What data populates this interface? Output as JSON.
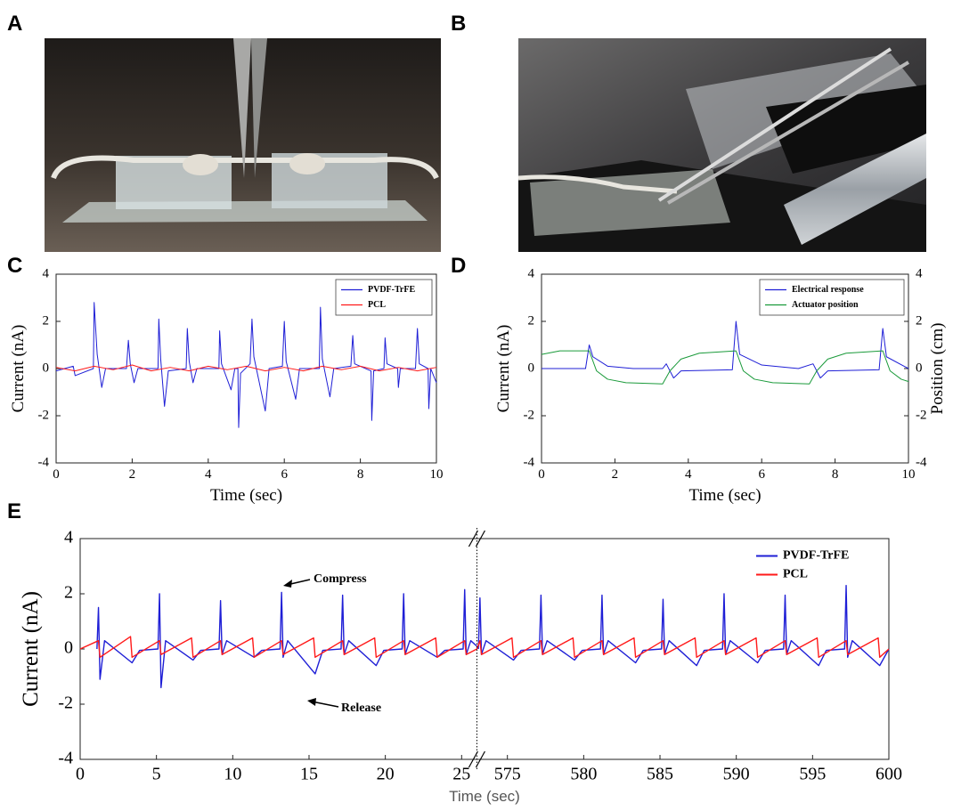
{
  "photo_labels": [
    "A",
    "B"
  ],
  "chart_data": [
    {
      "type": "line",
      "panel": "C",
      "xlabel": "Time (sec)",
      "ylabel": "Current (nA)",
      "xlim": [
        0,
        10
      ],
      "xticks": [
        0,
        2,
        4,
        6,
        8,
        10
      ],
      "ylim": [
        -4,
        4
      ],
      "yticks": [
        -4,
        -2,
        0,
        2,
        4
      ],
      "legend": "upper right",
      "legend_box": true,
      "series": [
        {
          "name": "PVDF-TrFE",
          "color": "#1f1fd6",
          "x": [
            0,
            0.45,
            0.5,
            0.98,
            1.0,
            1.08,
            1.2,
            1.3,
            1.85,
            1.9,
            1.95,
            2.05,
            2.15,
            2.68,
            2.7,
            2.75,
            2.85,
            2.95,
            3.42,
            3.45,
            3.5,
            3.6,
            3.7,
            4.28,
            4.3,
            4.35,
            4.6,
            4.7,
            4.78,
            4.8,
            4.85,
            5.1,
            5.15,
            5.2,
            5.5,
            5.6,
            5.95,
            6.0,
            6.05,
            6.3,
            6.4,
            6.92,
            6.95,
            7.0,
            7.2,
            7.3,
            7.75,
            7.8,
            7.85,
            8.28,
            8.3,
            8.35,
            8.62,
            8.65,
            8.7,
            8.98,
            9.0,
            9.05,
            9.45,
            9.5,
            9.55,
            9.78,
            9.8,
            9.85,
            10
          ],
          "values": [
            -0.1,
            0.1,
            -0.3,
            0,
            2.8,
            0.6,
            -0.8,
            0,
            0,
            1.2,
            0.2,
            -0.6,
            0,
            0,
            2.1,
            0.4,
            -1.6,
            -0.1,
            0,
            1.7,
            0.3,
            -0.6,
            0,
            0,
            1.6,
            0.2,
            -0.9,
            0,
            0,
            -2.5,
            -0.2,
            0.2,
            2.1,
            0.5,
            -1.8,
            0,
            0.1,
            2.0,
            0.3,
            -1.3,
            0,
            0,
            2.6,
            0.4,
            -1.2,
            0,
            0.1,
            1.4,
            0.2,
            -0.1,
            -2.2,
            -0.1,
            0,
            1.3,
            0.2,
            0,
            -0.8,
            0,
            0,
            1.7,
            0.2,
            0,
            -1.7,
            0,
            -0.6
          ]
        },
        {
          "name": "PCL",
          "color": "#ff1a1a",
          "x": [
            0,
            0.5,
            1,
            1.5,
            2,
            2.5,
            3,
            3.5,
            4,
            4.5,
            5,
            5.5,
            6,
            6.5,
            7,
            7.5,
            8,
            8.5,
            9,
            9.5,
            10
          ],
          "values": [
            0.05,
            -0.1,
            0.1,
            -0.05,
            0.15,
            -0.1,
            0.05,
            -0.1,
            0.1,
            -0.05,
            0.1,
            -0.1,
            0.05,
            -0.1,
            0.1,
            -0.05,
            0.1,
            -0.1,
            0.05,
            -0.1,
            0.05
          ]
        }
      ]
    },
    {
      "type": "line",
      "panel": "D",
      "xlabel": "Time (sec)",
      "ylabel": "Current (nA)",
      "y2label": "Position (cm)",
      "xlim": [
        0,
        10
      ],
      "xticks": [
        0,
        2,
        4,
        6,
        8,
        10
      ],
      "ylim": [
        -4,
        4
      ],
      "yticks": [
        -4,
        -2,
        0,
        2,
        4
      ],
      "y2lim": [
        -4,
        4
      ],
      "y2ticks": [
        -4,
        -2,
        0,
        2,
        4
      ],
      "legend": "upper right",
      "legend_box": true,
      "series": [
        {
          "name": "Electrical response",
          "color": "#1f1fd6",
          "x": [
            0,
            1.2,
            1.3,
            1.4,
            1.8,
            2.5,
            3.3,
            3.4,
            3.6,
            3.8,
            5.2,
            5.3,
            5.4,
            6,
            7,
            7.4,
            7.6,
            7.8,
            9.2,
            9.3,
            9.4,
            10
          ],
          "values": [
            0,
            0,
            1.0,
            0.5,
            0.1,
            0,
            0,
            0.2,
            -0.4,
            -0.1,
            -0.05,
            2.0,
            0.6,
            0.15,
            0,
            0.2,
            -0.4,
            -0.1,
            -0.05,
            1.7,
            0.5,
            0
          ]
        },
        {
          "name": "Actuator position",
          "color": "#1a9a3a",
          "axis": "y2",
          "x": [
            0,
            0.5,
            1.3,
            1.5,
            1.8,
            2.3,
            3.3,
            3.5,
            3.8,
            4.3,
            5.3,
            5.5,
            5.8,
            6.3,
            7.3,
            7.5,
            7.8,
            8.3,
            9.3,
            9.5,
            9.8,
            10
          ],
          "values": [
            0.6,
            0.75,
            0.75,
            -0.1,
            -0.45,
            -0.6,
            -0.65,
            -0.1,
            0.4,
            0.65,
            0.75,
            -0.1,
            -0.45,
            -0.6,
            -0.65,
            -0.1,
            0.4,
            0.65,
            0.75,
            -0.1,
            -0.45,
            -0.55
          ]
        }
      ]
    },
    {
      "type": "line",
      "panel": "E",
      "xlabel": "Time (sec)",
      "ylabel": "Current (nA)",
      "x_segments": [
        {
          "xlim": [
            0,
            26
          ],
          "xticks": [
            0,
            5,
            10,
            15,
            20,
            25
          ]
        },
        {
          "xlim": [
            573,
            600
          ],
          "xticks": [
            575,
            580,
            585,
            590,
            595,
            600
          ]
        }
      ],
      "ylim": [
        -4,
        4
      ],
      "yticks": [
        -4,
        -2,
        0,
        2,
        4
      ],
      "legend": "upper right",
      "legend_box": false,
      "annotations": [
        {
          "text": "Compress"
        },
        {
          "text": "Release"
        }
      ],
      "series": [
        {
          "name": "PVDF-TrFE",
          "color": "#1f1fd6",
          "x": [
            1.1,
            1.2,
            1.3,
            1.6,
            3.4,
            3.9,
            5.1,
            5.2,
            5.3,
            5.6,
            7.4,
            7.9,
            9.1,
            9.2,
            9.3,
            9.6,
            11.4,
            11.9,
            13.1,
            13.2,
            13.3,
            13.6,
            15.4,
            15.9,
            17.1,
            17.2,
            17.3,
            17.6,
            19.4,
            19.9,
            21.1,
            21.2,
            21.3,
            21.6,
            23.4,
            23.9,
            25.1,
            25.2,
            25.3,
            25.6,
            26,
            27,
            573.1,
            573.2,
            573.3,
            573.6,
            575.4,
            575.9,
            577.1,
            577.2,
            577.3,
            577.6,
            579.4,
            579.9,
            581.1,
            581.2,
            581.3,
            581.6,
            583.4,
            583.9,
            585.1,
            585.2,
            585.3,
            585.6,
            587.4,
            587.9,
            589.1,
            589.2,
            589.3,
            589.6,
            591.4,
            591.9,
            593.1,
            593.2,
            593.3,
            593.6,
            595.4,
            595.9,
            597.1,
            597.2,
            597.3,
            597.6,
            599.4,
            600
          ],
          "values": [
            0,
            1.5,
            -1.1,
            0.3,
            -0.5,
            -0.05,
            0,
            2.0,
            -1.4,
            0.3,
            -0.4,
            -0.05,
            0,
            1.75,
            -0.2,
            0.3,
            -0.3,
            -0.05,
            0,
            2.05,
            -0.3,
            0.3,
            -0.9,
            -0.05,
            0,
            1.95,
            -0.2,
            0.3,
            -0.6,
            -0.05,
            0,
            2.0,
            -0.2,
            0.3,
            -0.3,
            -0.05,
            0,
            2.15,
            -0.2,
            0.3,
            0.1,
            null,
            0,
            1.85,
            -0.2,
            0.3,
            -0.4,
            -0.05,
            0,
            1.95,
            -0.2,
            0.3,
            -0.4,
            -0.05,
            0,
            1.95,
            -0.2,
            0.3,
            -0.5,
            -0.05,
            0,
            1.8,
            -0.2,
            0.3,
            -0.6,
            -0.05,
            0,
            2.0,
            -0.2,
            0.3,
            -0.5,
            -0.05,
            0,
            1.95,
            -0.2,
            0.3,
            -0.6,
            -0.05,
            0,
            2.3,
            -0.3,
            0.3,
            -0.6,
            0
          ]
        },
        {
          "name": "PCL",
          "color": "#ff1a1a",
          "x": [
            0,
            1.2,
            1.3,
            3.3,
            3.4,
            5.2,
            5.3,
            7.3,
            7.4,
            9.2,
            9.3,
            11.3,
            11.4,
            13.2,
            13.3,
            15.3,
            15.4,
            17.2,
            17.3,
            19.3,
            19.4,
            21.2,
            21.3,
            23.3,
            23.4,
            25.2,
            25.3,
            26,
            27,
            573,
            573.2,
            573.3,
            575.3,
            575.4,
            577.2,
            577.3,
            579.3,
            579.4,
            581.2,
            581.3,
            583.3,
            583.4,
            585.2,
            585.3,
            587.3,
            587.4,
            589.2,
            589.3,
            591.3,
            591.4,
            593.2,
            593.3,
            595.3,
            595.4,
            597.2,
            597.3,
            599.3,
            599.4,
            600
          ],
          "values": [
            0,
            0.3,
            -0.3,
            0.45,
            -0.3,
            0.3,
            -0.2,
            0.4,
            -0.3,
            0.3,
            -0.2,
            0.4,
            -0.3,
            0.3,
            -0.2,
            0.4,
            -0.3,
            0.3,
            -0.2,
            0.4,
            -0.3,
            0.3,
            -0.2,
            0.4,
            -0.3,
            0.3,
            -0.2,
            0,
            null,
            0,
            0.3,
            -0.2,
            0.4,
            -0.3,
            0.3,
            -0.2,
            0.4,
            -0.3,
            0.3,
            -0.2,
            0.4,
            -0.3,
            0.3,
            -0.2,
            0.4,
            -0.3,
            0.3,
            -0.2,
            0.4,
            -0.3,
            0.3,
            -0.2,
            0.4,
            -0.3,
            0.3,
            -0.2,
            0.4,
            -0.3,
            0
          ]
        }
      ]
    }
  ]
}
